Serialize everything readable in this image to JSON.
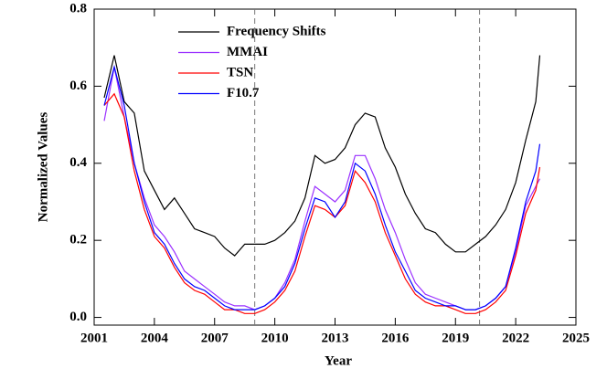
{
  "chart_data": {
    "type": "line",
    "xlabel": "Year",
    "ylabel": "Normalized Values",
    "xlim": [
      2001,
      2025
    ],
    "ylim": [
      -0.02,
      0.8
    ],
    "xticks": [
      2001,
      2004,
      2007,
      2010,
      2013,
      2016,
      2019,
      2022,
      2025
    ],
    "yticks": [
      {
        "value": 0,
        "label": "0.0"
      },
      {
        "value": 0.2,
        "label": "0.2"
      },
      {
        "value": 0.4,
        "label": "0.4"
      },
      {
        "value": 0.6,
        "label": "0.6"
      },
      {
        "value": 0.8,
        "label": "0.8"
      }
    ],
    "vlines": [
      2009,
      2020.2
    ],
    "x": [
      2001.5,
      2002.0,
      2002.5,
      2003.0,
      2003.5,
      2004.0,
      2004.5,
      2005.0,
      2005.5,
      2006.0,
      2006.5,
      2007.0,
      2007.5,
      2008.0,
      2008.5,
      2009.0,
      2009.5,
      2010.0,
      2010.5,
      2011.0,
      2011.5,
      2012.0,
      2012.5,
      2013.0,
      2013.5,
      2014.0,
      2014.5,
      2015.0,
      2015.5,
      2016.0,
      2016.5,
      2017.0,
      2017.5,
      2018.0,
      2018.5,
      2019.0,
      2019.5,
      2020.0,
      2020.5,
      2021.0,
      2021.5,
      2022.0,
      2022.5,
      2023.0,
      2023.2
    ],
    "series": [
      {
        "name": "Frequency Shifts",
        "color": "#000000",
        "values": [
          0.57,
          0.68,
          0.56,
          0.53,
          0.38,
          0.33,
          0.28,
          0.31,
          0.27,
          0.23,
          0.22,
          0.21,
          0.18,
          0.16,
          0.19,
          0.19,
          0.19,
          0.2,
          0.22,
          0.25,
          0.31,
          0.42,
          0.4,
          0.41,
          0.44,
          0.5,
          0.53,
          0.52,
          0.44,
          0.39,
          0.32,
          0.27,
          0.23,
          0.22,
          0.19,
          0.17,
          0.17,
          0.19,
          0.21,
          0.24,
          0.28,
          0.35,
          0.46,
          0.56,
          0.68
        ]
      },
      {
        "name": "MMAI",
        "color": "#9b30ff",
        "values": [
          0.51,
          0.65,
          0.52,
          0.4,
          0.31,
          0.24,
          0.21,
          0.17,
          0.12,
          0.1,
          0.08,
          0.06,
          0.04,
          0.03,
          0.03,
          0.02,
          0.03,
          0.05,
          0.09,
          0.15,
          0.25,
          0.34,
          0.32,
          0.3,
          0.33,
          0.42,
          0.42,
          0.36,
          0.28,
          0.22,
          0.15,
          0.09,
          0.06,
          0.05,
          0.04,
          0.03,
          0.02,
          0.02,
          0.03,
          0.05,
          0.08,
          0.17,
          0.29,
          0.34,
          0.36
        ]
      },
      {
        "name": "TSN",
        "color": "#ff0000",
        "values": [
          0.55,
          0.58,
          0.52,
          0.38,
          0.28,
          0.21,
          0.18,
          0.13,
          0.09,
          0.07,
          0.06,
          0.04,
          0.02,
          0.02,
          0.01,
          0.01,
          0.02,
          0.04,
          0.07,
          0.12,
          0.21,
          0.29,
          0.28,
          0.26,
          0.29,
          0.38,
          0.35,
          0.3,
          0.22,
          0.16,
          0.1,
          0.06,
          0.04,
          0.03,
          0.03,
          0.02,
          0.01,
          0.01,
          0.02,
          0.04,
          0.07,
          0.16,
          0.27,
          0.33,
          0.39
        ]
      },
      {
        "name": "F10.7",
        "color": "#0000ff",
        "values": [
          0.55,
          0.65,
          0.55,
          0.4,
          0.3,
          0.22,
          0.19,
          0.14,
          0.1,
          0.08,
          0.07,
          0.05,
          0.03,
          0.02,
          0.02,
          0.02,
          0.03,
          0.05,
          0.08,
          0.14,
          0.23,
          0.31,
          0.3,
          0.26,
          0.3,
          0.4,
          0.38,
          0.32,
          0.24,
          0.17,
          0.12,
          0.07,
          0.05,
          0.04,
          0.03,
          0.03,
          0.02,
          0.02,
          0.03,
          0.05,
          0.08,
          0.18,
          0.3,
          0.38,
          0.45
        ]
      }
    ]
  }
}
